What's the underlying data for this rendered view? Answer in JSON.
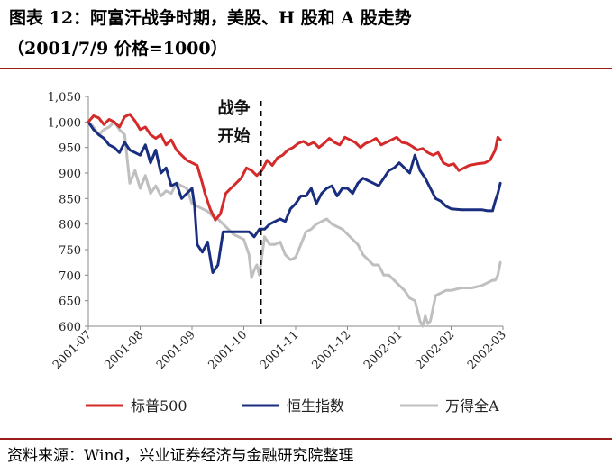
{
  "title_line1": "图表 12：阿富汗战争时期，美股、H 股和 A 股走势",
  "title_line2": "（2001/7/9 价格=1000）",
  "source": "资料来源：Wind，兴业证券经济与金融研究院整理",
  "chart_data": {
    "type": "line",
    "ylim": [
      600,
      1050
    ],
    "yticks": [
      "600",
      "650",
      "700",
      "750",
      "800",
      "850",
      "900",
      "950",
      "1,000",
      "1,050"
    ],
    "xticks": [
      "2001-07",
      "2001-08",
      "2001-09",
      "2001-10",
      "2001-11",
      "2001-12",
      "2002-01",
      "2002-02",
      "2002-03"
    ],
    "xrange_months": [
      0,
      8
    ],
    "annotation": {
      "line1": "战争",
      "line2": "开始",
      "x": 3.33
    },
    "series": [
      {
        "name": "标普500",
        "color": "#d42a2a",
        "x": [
          0.0,
          0.1,
          0.2,
          0.3,
          0.4,
          0.5,
          0.6,
          0.7,
          0.8,
          0.9,
          1.0,
          1.1,
          1.2,
          1.3,
          1.4,
          1.5,
          1.6,
          1.7,
          1.8,
          1.9,
          2.0,
          2.1,
          2.2,
          2.25,
          2.35,
          2.45,
          2.55,
          2.65,
          2.75,
          2.85,
          2.95,
          3.05,
          3.15,
          3.25,
          3.35,
          3.45,
          3.55,
          3.65,
          3.75,
          3.85,
          3.95,
          4.05,
          4.15,
          4.25,
          4.35,
          4.45,
          4.55,
          4.65,
          4.75,
          4.85,
          4.95,
          5.05,
          5.15,
          5.25,
          5.35,
          5.45,
          5.55,
          5.65,
          5.75,
          5.85,
          5.95,
          6.05,
          6.15,
          6.25,
          6.35,
          6.45,
          6.55,
          6.65,
          6.75,
          6.85,
          6.95,
          7.05,
          7.15,
          7.25,
          7.35,
          7.5,
          7.65,
          7.75,
          7.85,
          7.9,
          7.95
        ],
        "y": [
          1000,
          1012,
          1008,
          995,
          1005,
          1000,
          990,
          1010,
          1015,
          1002,
          985,
          990,
          975,
          968,
          975,
          955,
          965,
          945,
          935,
          925,
          920,
          915,
          880,
          860,
          830,
          808,
          820,
          860,
          870,
          880,
          890,
          910,
          905,
          895,
          905,
          925,
          915,
          930,
          935,
          945,
          950,
          958,
          962,
          955,
          960,
          950,
          958,
          968,
          960,
          955,
          970,
          965,
          960,
          950,
          958,
          962,
          968,
          955,
          960,
          965,
          970,
          960,
          958,
          952,
          945,
          948,
          940,
          935,
          940,
          920,
          915,
          918,
          905,
          910,
          915,
          918,
          920,
          925,
          945,
          970,
          965
        ]
      },
      {
        "name": "恒生指数",
        "color": "#1a2e80",
        "x": [
          0.0,
          0.1,
          0.2,
          0.3,
          0.4,
          0.5,
          0.6,
          0.7,
          0.8,
          0.9,
          1.0,
          1.1,
          1.2,
          1.3,
          1.4,
          1.5,
          1.6,
          1.7,
          1.8,
          1.9,
          2.0,
          2.05,
          2.1,
          2.2,
          2.3,
          2.4,
          2.5,
          2.6,
          2.7,
          2.8,
          2.9,
          3.0,
          3.1,
          3.2,
          3.3,
          3.4,
          3.5,
          3.6,
          3.7,
          3.8,
          3.9,
          4.0,
          4.1,
          4.2,
          4.3,
          4.4,
          4.5,
          4.6,
          4.7,
          4.8,
          4.9,
          5.0,
          5.1,
          5.2,
          5.3,
          5.4,
          5.5,
          5.6,
          5.7,
          5.8,
          5.9,
          6.0,
          6.1,
          6.2,
          6.3,
          6.4,
          6.5,
          6.6,
          6.7,
          6.8,
          6.9,
          7.0,
          7.2,
          7.4,
          7.6,
          7.7,
          7.8,
          7.85,
          7.9,
          7.95
        ],
        "y": [
          1000,
          985,
          975,
          968,
          955,
          950,
          940,
          960,
          945,
          940,
          935,
          955,
          920,
          945,
          900,
          910,
          875,
          880,
          850,
          860,
          870,
          835,
          760,
          745,
          765,
          705,
          720,
          785,
          785,
          785,
          785,
          785,
          785,
          775,
          790,
          790,
          800,
          805,
          810,
          805,
          830,
          840,
          855,
          855,
          870,
          840,
          860,
          870,
          875,
          855,
          870,
          870,
          860,
          880,
          890,
          885,
          880,
          875,
          890,
          905,
          910,
          920,
          910,
          900,
          935,
          905,
          890,
          870,
          850,
          845,
          835,
          830,
          828,
          828,
          828,
          826,
          826,
          845,
          860,
          880
        ]
      },
      {
        "name": "万得全A",
        "color": "#bfbfbf",
        "x": [
          0.0,
          0.1,
          0.2,
          0.3,
          0.4,
          0.5,
          0.6,
          0.7,
          0.8,
          0.9,
          1.0,
          1.1,
          1.2,
          1.3,
          1.4,
          1.5,
          1.6,
          1.7,
          1.8,
          1.9,
          2.0,
          2.1,
          2.2,
          2.3,
          2.4,
          2.5,
          2.6,
          2.7,
          2.8,
          2.9,
          3.0,
          3.1,
          3.15,
          3.2,
          3.25,
          3.3,
          3.4,
          3.5,
          3.6,
          3.7,
          3.8,
          3.9,
          4.0,
          4.1,
          4.2,
          4.3,
          4.4,
          4.5,
          4.6,
          4.7,
          4.8,
          4.9,
          5.0,
          5.1,
          5.2,
          5.3,
          5.4,
          5.5,
          5.6,
          5.7,
          5.8,
          5.9,
          6.0,
          6.1,
          6.2,
          6.3,
          6.4,
          6.45,
          6.5,
          6.55,
          6.6,
          6.7,
          6.8,
          6.9,
          7.0,
          7.2,
          7.4,
          7.6,
          7.7,
          7.8,
          7.85,
          7.9,
          7.95
        ],
        "y": [
          1000,
          990,
          975,
          985,
          990,
          1000,
          985,
          975,
          880,
          905,
          870,
          895,
          860,
          875,
          855,
          865,
          860,
          880,
          875,
          870,
          840,
          835,
          830,
          825,
          815,
          810,
          800,
          790,
          780,
          775,
          770,
          740,
          695,
          710,
          720,
          700,
          775,
          760,
          760,
          765,
          740,
          730,
          735,
          760,
          785,
          790,
          800,
          805,
          810,
          800,
          795,
          790,
          780,
          770,
          760,
          740,
          730,
          720,
          720,
          700,
          700,
          690,
          680,
          670,
          655,
          650,
          610,
          600,
          620,
          605,
          610,
          660,
          665,
          670,
          670,
          675,
          675,
          680,
          685,
          690,
          690,
          700,
          725
        ]
      }
    ]
  }
}
